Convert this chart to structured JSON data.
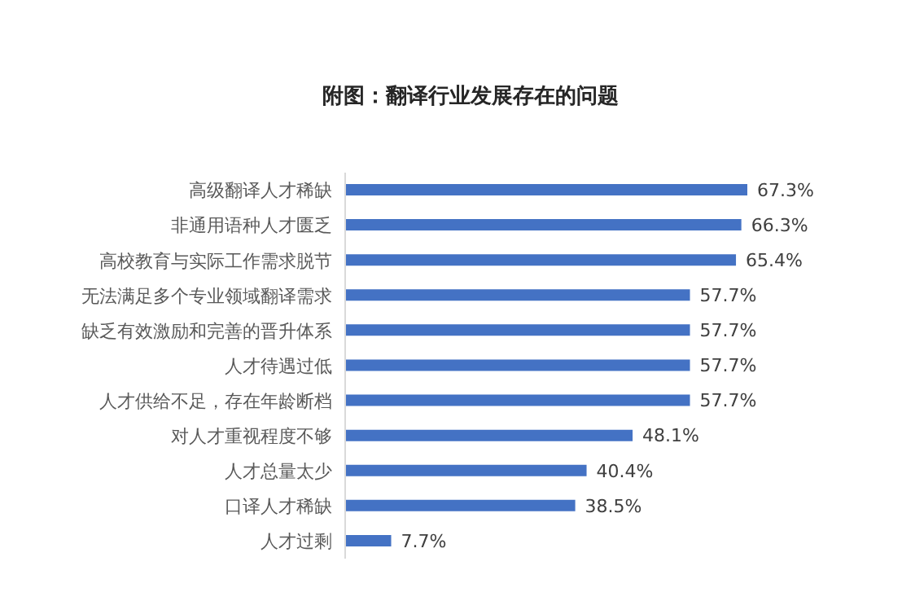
{
  "chart_data": {
    "type": "bar",
    "orientation": "horizontal",
    "title": "附图：翻译行业发展存在的问题",
    "categories": [
      "高级翻译人才稀缺",
      "非通用语种人才匮乏",
      "高校教育与实际工作需求脱节",
      "无法满足多个专业领域翻译需求",
      "缺乏有效激励和完善的晋升体系",
      "人才待遇过低",
      "人才供给不足，存在年龄断档",
      "对人才重视程度不够",
      "人才总量太少",
      "口译人才稀缺",
      "人才过剩"
    ],
    "values": [
      67.3,
      66.3,
      65.4,
      57.7,
      57.7,
      57.7,
      57.7,
      48.1,
      40.4,
      38.5,
      7.7
    ],
    "value_labels": [
      "67.3%",
      "66.3%",
      "65.4%",
      "57.7%",
      "57.7%",
      "57.7%",
      "57.7%",
      "48.1%",
      "40.4%",
      "38.5%",
      "7.7%"
    ],
    "color": "#4472c4"
  }
}
